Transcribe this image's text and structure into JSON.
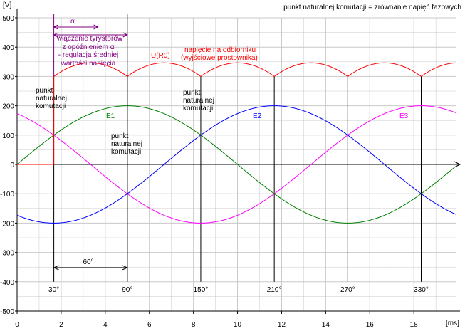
{
  "chart_data": {
    "type": "line",
    "title": "punkt naturalnej komutacji = zrównanie napięć fazowych",
    "ylabel": "[V]",
    "xlabel": "[ms]",
    "xlim": [
      0,
      19.9
    ],
    "ylim": [
      -500,
      500
    ],
    "xticks": [
      0,
      2,
      4,
      6,
      8,
      10,
      12,
      14,
      16,
      18
    ],
    "xtick_labels": [
      "0",
      "2",
      "4",
      "6",
      "8",
      "10",
      "12",
      "14",
      "16",
      "18"
    ],
    "yticks": [
      500,
      400,
      300,
      200,
      100,
      0,
      -100,
      -200,
      -300,
      -400,
      -500
    ],
    "ytick_labels": [
      "500",
      "400",
      "300",
      "200",
      "100",
      "0",
      "-100",
      "-200",
      "-300",
      "-400",
      "-500"
    ],
    "grid": true,
    "amplitude": 200,
    "period_ms": 20,
    "series": [
      {
        "name": "E1",
        "phase_deg": 0,
        "color": "#008000"
      },
      {
        "name": "E2",
        "phase_deg": -120,
        "color": "#0000ff"
      },
      {
        "name": "E3",
        "phase_deg": 120,
        "color": "#ff00ff"
      },
      {
        "name": "U(R0)",
        "description": "napięcie na odbiorniku (wyjściowe prostownika)",
        "color": "#ff0000",
        "start_ms": 1.667,
        "start_value": 0,
        "jump_value": 300
      }
    ],
    "commutation_points": [
      {
        "t_ms": 1.667,
        "label": "30°"
      },
      {
        "t_ms": 5.0,
        "label": "90°"
      },
      {
        "t_ms": 8.333,
        "label": "150°"
      },
      {
        "t_ms": 11.667,
        "label": "210°"
      },
      {
        "t_ms": 15.0,
        "label": "270°"
      },
      {
        "t_ms": 18.333,
        "label": "330°"
      }
    ],
    "annotations": {
      "alpha_symbol": "α",
      "thyristor_text": [
        "włączenie tyrystorów",
        "z opóźnieniem α",
        "- regulacja średniej",
        "wartości napięcia"
      ],
      "load_voltage_label": "U(R0)",
      "load_voltage_desc": [
        "napięcie na odbiorniku",
        "(wyjściowe prostownika)"
      ],
      "commutation_label_1": [
        "punkt",
        "naturalnej",
        "komutacji"
      ],
      "commutation_label_2": [
        "punkt",
        "naturalnej",
        "komutacji"
      ],
      "commutation_label_3": [
        "punkt",
        "naturalnej",
        "komutacji"
      ],
      "sixty_label": "60°",
      "series_label_E1": "E1",
      "series_label_E2": "E2",
      "series_label_E3": "E3"
    },
    "colors": {
      "axis": "#000000",
      "grid": "#c8c8c8",
      "annotation": "#800080",
      "load": "#ff0000"
    }
  }
}
